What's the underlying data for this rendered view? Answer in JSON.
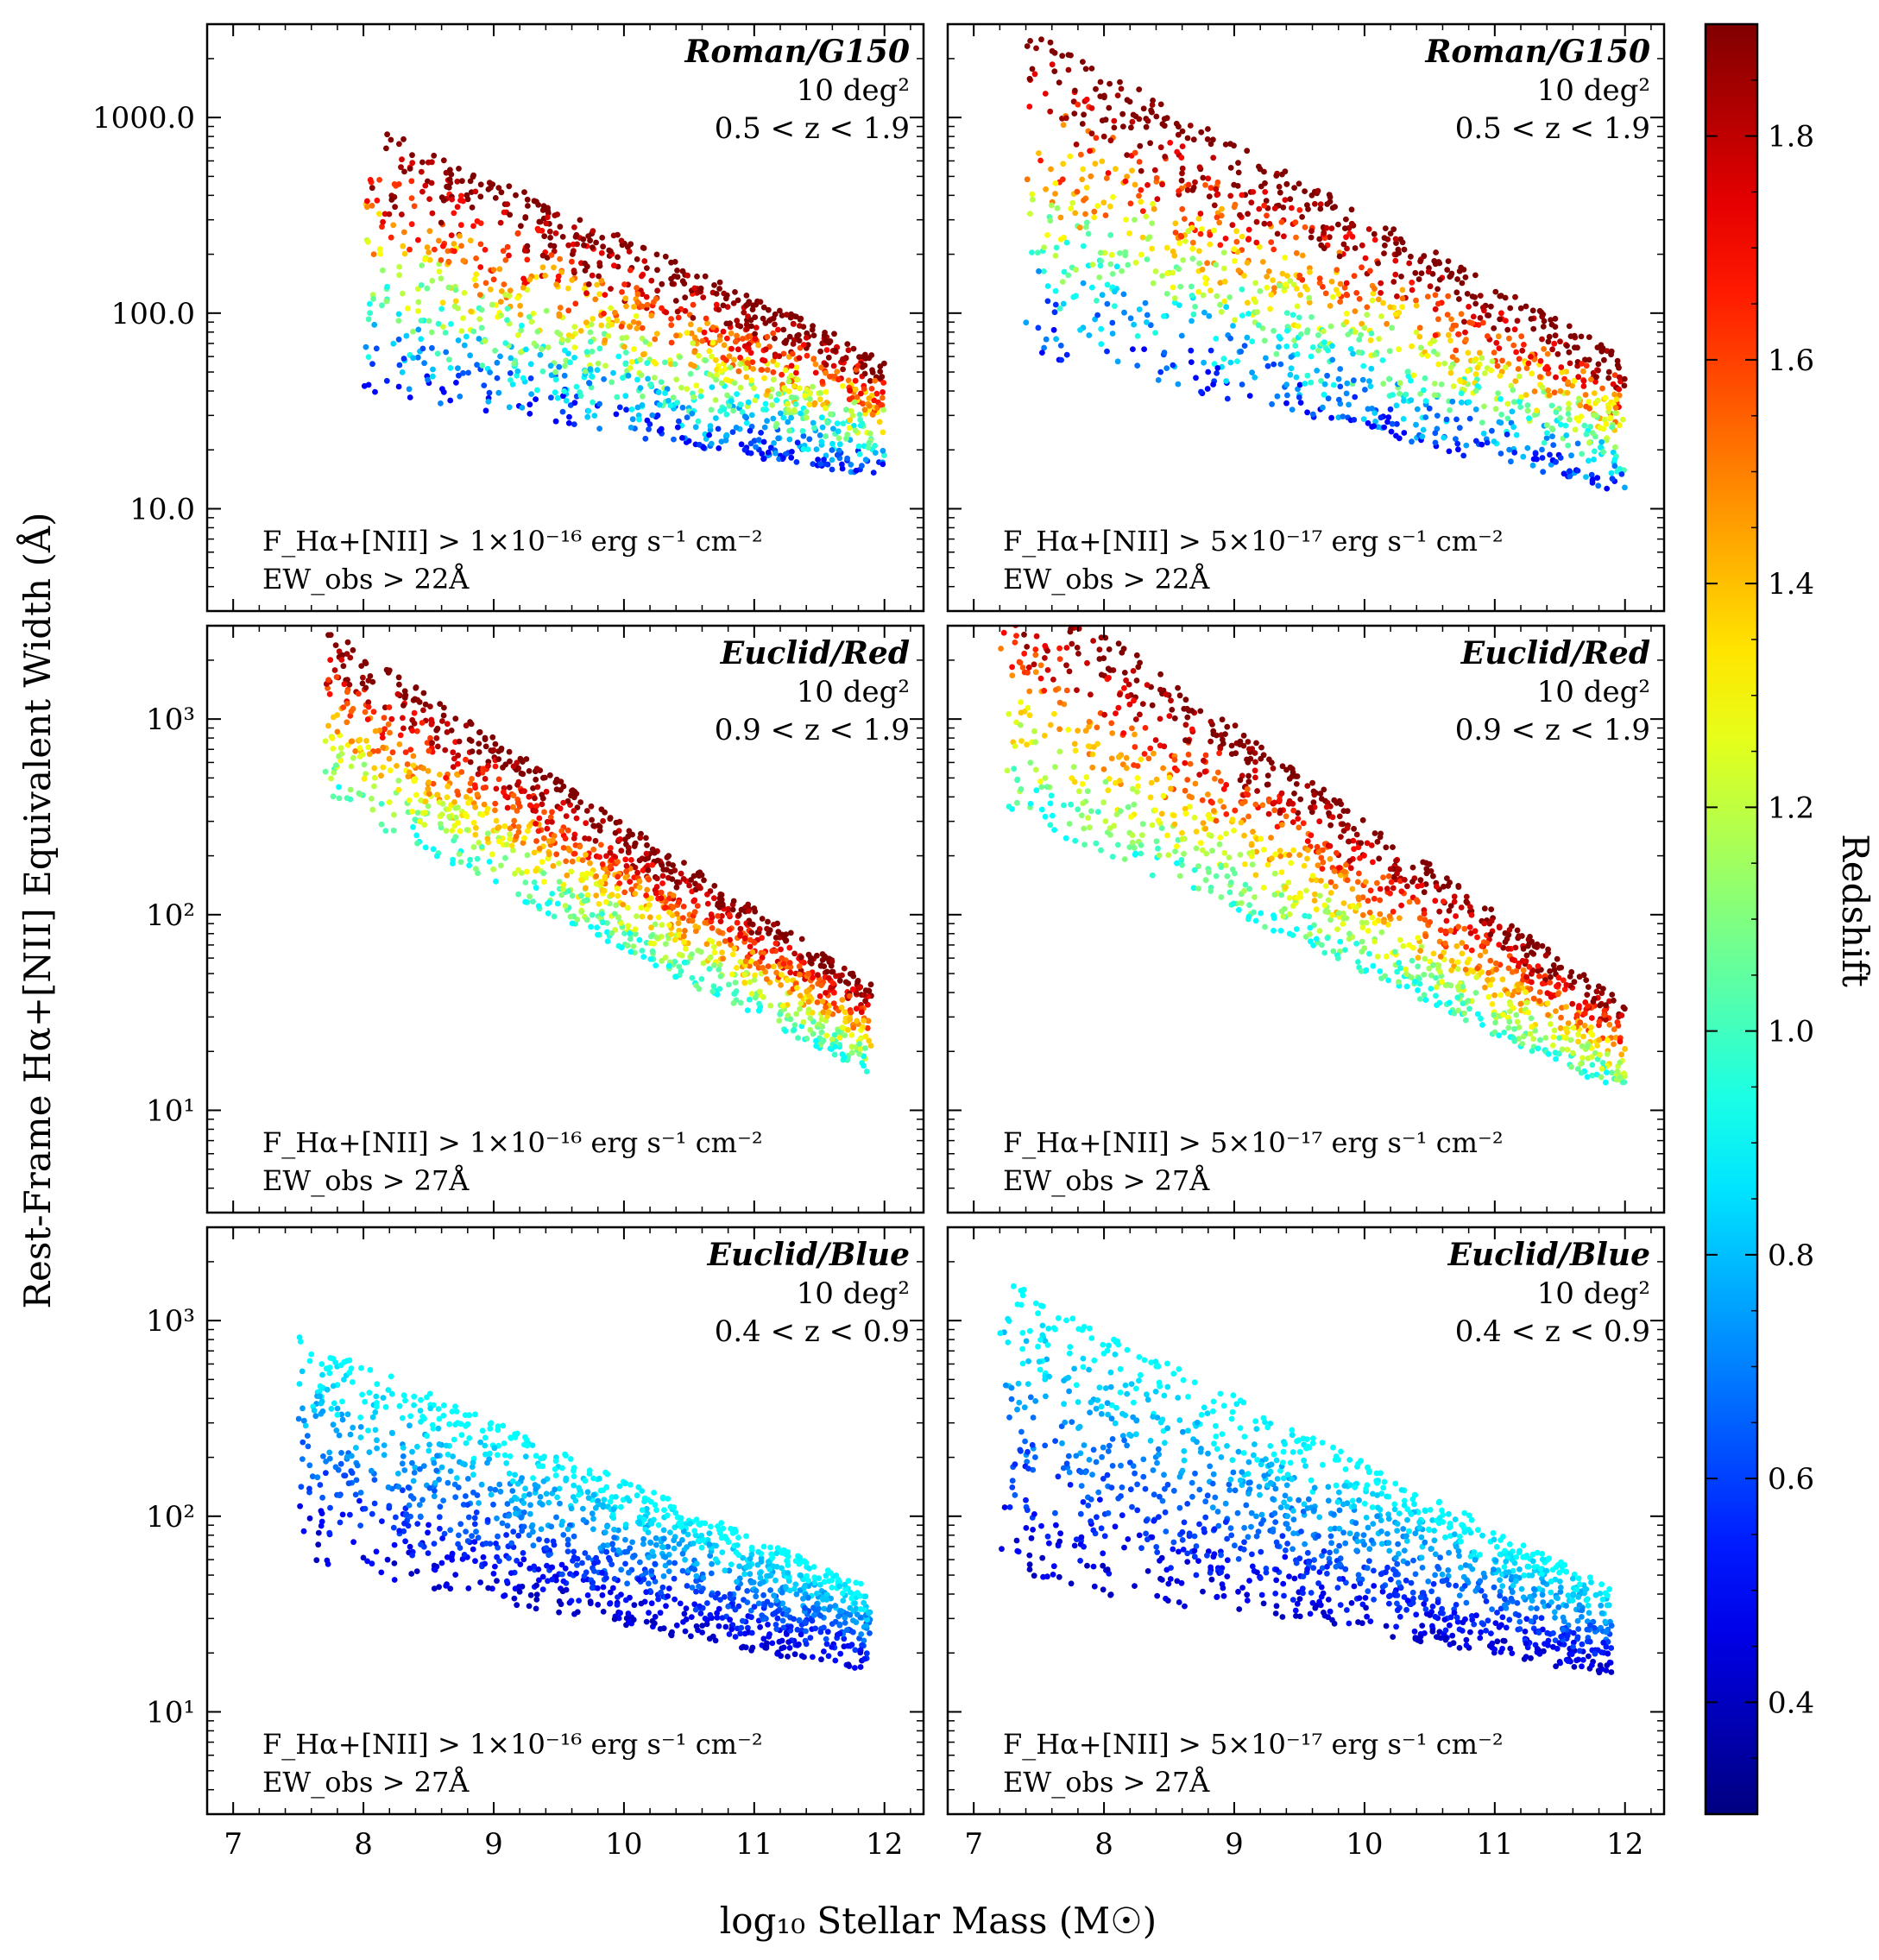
{
  "figure": {
    "ylabel": "Rest-Frame Hα+[NII] Equivalent Width (Å)",
    "xlabel": "log₁₀ Stellar Mass (M☉)",
    "colorbar": {
      "label": "Redshift",
      "ticks": [
        "0.4",
        "0.6",
        "0.8",
        "1.0",
        "1.2",
        "1.4",
        "1.6",
        "1.8"
      ],
      "range": [
        0.3,
        1.9
      ],
      "colormap": "jet"
    }
  },
  "chart_data": [
    {
      "type": "scatter",
      "panel": "top-left",
      "title": "Roman/G150",
      "area": "10 deg²",
      "zrange": "0.5 < z < 1.9",
      "criteria": [
        "F_Hα+[NII] > 1×10⁻¹⁶ erg s⁻¹ cm⁻²",
        "EW_obs > 22Å"
      ],
      "x_ticks": [
        "7",
        "8",
        "9",
        "10",
        "11",
        "12"
      ],
      "y_ticks": [
        "10.0",
        "100.0",
        "1000.0"
      ],
      "xlim": [
        6.8,
        12.3
      ],
      "ylim": [
        3,
        3000
      ],
      "yscale": "log",
      "z_range": [
        0.5,
        1.9
      ],
      "cloud": {
        "x_range": [
          8.0,
          12.0
        ],
        "ew_at_m8": [
          40,
          1000
        ],
        "ew_at_m12": [
          14,
          60
        ],
        "ew_floor": 13
      },
      "color_trend": "high redshift (red) at high EW, low redshift (blue) at low EW"
    },
    {
      "type": "scatter",
      "panel": "top-right",
      "title": "Roman/G150",
      "area": "10 deg²",
      "zrange": "0.5 < z < 1.9",
      "criteria": [
        "F_Hα+[NII] > 5×10⁻¹⁷ erg s⁻¹ cm⁻²",
        "EW_obs > 22Å"
      ],
      "x_ticks": [
        "7",
        "8",
        "9",
        "10",
        "11",
        "12"
      ],
      "y_ticks": [
        "10.0",
        "100.0",
        "1000.0"
      ],
      "xlim": [
        6.8,
        12.3
      ],
      "ylim": [
        3,
        3000
      ],
      "yscale": "log",
      "z_range": [
        0.5,
        1.9
      ],
      "cloud": {
        "x_range": [
          7.4,
          12.0
        ],
        "ew_at_m8": [
          50,
          1800
        ],
        "ew_at_m12": [
          12,
          60
        ],
        "ew_floor": 12
      },
      "color_trend": "high redshift (red) at high EW, low redshift (blue) at low EW"
    },
    {
      "type": "scatter",
      "panel": "middle-left",
      "title": "Euclid/Red",
      "area": "10 deg²",
      "zrange": "0.9 < z < 1.9",
      "criteria": [
        "F_Hα+[NII] > 1×10⁻¹⁶ erg s⁻¹ cm⁻²",
        "EW_obs > 27Å"
      ],
      "x_ticks": [
        "7",
        "8",
        "9",
        "10",
        "11",
        "12"
      ],
      "y_ticks": [
        "10¹",
        "10²",
        "10³"
      ],
      "xlim": [
        6.8,
        12.3
      ],
      "ylim": [
        3,
        3000
      ],
      "yscale": "log",
      "z_range": [
        0.9,
        1.9
      ],
      "cloud": {
        "x_range": [
          7.7,
          11.9
        ],
        "ew_at_m8": [
          300,
          2200
        ],
        "ew_at_m12": [
          14,
          40
        ],
        "ew_floor": 14
      },
      "color_trend": "high redshift (red) at high EW, low redshift (cyan) at low EW"
    },
    {
      "type": "scatter",
      "panel": "middle-right",
      "title": "Euclid/Red",
      "area": "10 deg²",
      "zrange": "0.9 < z < 1.9",
      "criteria": [
        "F_Hα+[NII] > 5×10⁻¹⁷ erg s⁻¹ cm⁻²",
        "EW_obs > 27Å"
      ],
      "x_ticks": [
        "7",
        "8",
        "9",
        "10",
        "11",
        "12"
      ],
      "y_ticks": [
        "10¹",
        "10²",
        "10³"
      ],
      "xlim": [
        6.8,
        12.3
      ],
      "ylim": [
        3,
        3000
      ],
      "yscale": "log",
      "z_range": [
        0.9,
        1.9
      ],
      "cloud": {
        "x_range": [
          7.2,
          12.0
        ],
        "ew_at_m8": [
          200,
          2800
        ],
        "ew_at_m12": [
          12,
          35
        ],
        "ew_floor": 11
      },
      "color_trend": "high redshift (red) at high EW, low redshift (cyan) at low EW"
    },
    {
      "type": "scatter",
      "panel": "bottom-left",
      "title": "Euclid/Blue",
      "area": "10 deg²",
      "zrange": "0.4 < z < 0.9",
      "criteria": [
        "F_Hα+[NII] > 1×10⁻¹⁶ erg s⁻¹ cm⁻²",
        "EW_obs > 27Å"
      ],
      "x_ticks": [
        "7",
        "8",
        "9",
        "10",
        "11",
        "12"
      ],
      "y_ticks": [
        "10¹",
        "10²",
        "10³"
      ],
      "xlim": [
        6.8,
        12.3
      ],
      "ylim": [
        3,
        3000
      ],
      "yscale": "log",
      "z_range": [
        0.4,
        0.9
      ],
      "cloud": {
        "x_range": [
          7.5,
          11.9
        ],
        "ew_at_m8": [
          50,
          600
        ],
        "ew_at_m12": [
          15,
          40
        ],
        "ew_floor": 15
      },
      "color_trend": "higher redshift (cyan) at high EW, lower redshift (blue) at low EW"
    },
    {
      "type": "scatter",
      "panel": "bottom-right",
      "title": "Euclid/Blue",
      "area": "10 deg²",
      "zrange": "0.4 < z < 0.9",
      "criteria": [
        "F_Hα+[NII] > 5×10⁻¹⁷ erg s⁻¹ cm⁻²",
        "EW_obs > 27Å"
      ],
      "x_ticks": [
        "7",
        "8",
        "9",
        "10",
        "11",
        "12"
      ],
      "y_ticks": [
        "10¹",
        "10²",
        "10³"
      ],
      "xlim": [
        6.8,
        12.3
      ],
      "ylim": [
        3,
        3000
      ],
      "yscale": "log",
      "z_range": [
        0.4,
        0.9
      ],
      "cloud": {
        "x_range": [
          7.2,
          11.9
        ],
        "ew_at_m8": [
          40,
          900
        ],
        "ew_at_m12": [
          15,
          40
        ],
        "ew_floor": 15
      },
      "color_trend": "higher redshift (cyan) at high EW, lower redshift (blue) at low EW"
    }
  ]
}
